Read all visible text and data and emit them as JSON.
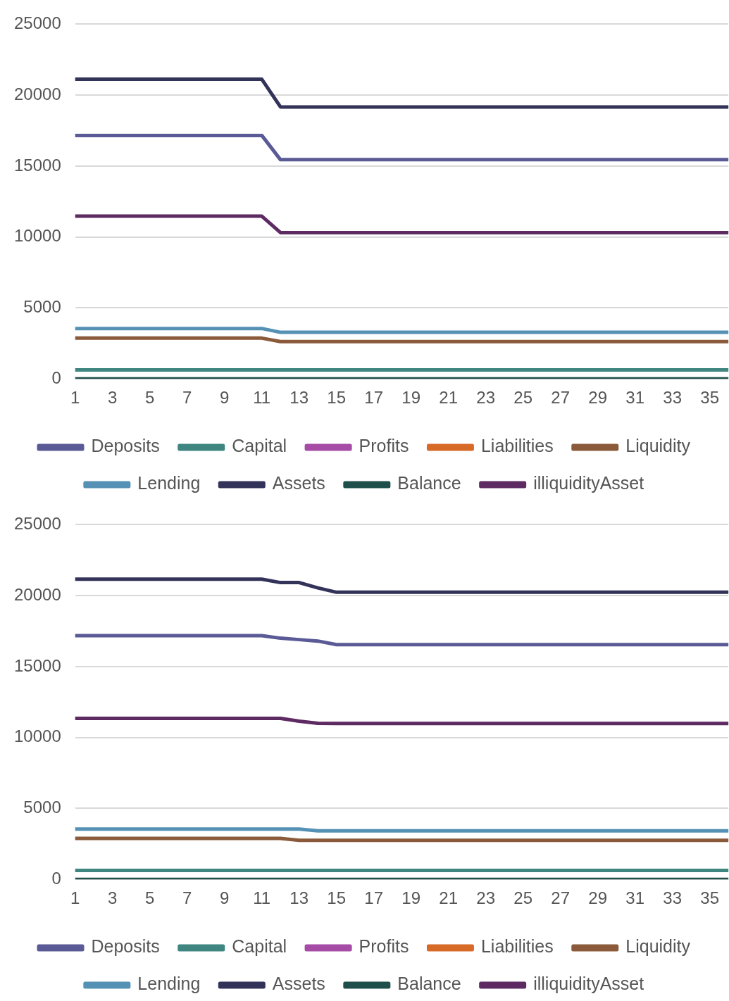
{
  "chart_data": [
    {
      "type": "line",
      "x": [
        1,
        2,
        3,
        4,
        5,
        6,
        7,
        8,
        9,
        10,
        11,
        12,
        13,
        14,
        15,
        16,
        17,
        18,
        19,
        20,
        21,
        22,
        23,
        24,
        25,
        26,
        27,
        28,
        29,
        30,
        31,
        32,
        33,
        34,
        35,
        36
      ],
      "xlim": [
        1,
        36
      ],
      "xticks": [
        1,
        3,
        5,
        7,
        9,
        11,
        13,
        15,
        17,
        19,
        21,
        23,
        25,
        27,
        29,
        31,
        33,
        35
      ],
      "ylim": [
        0,
        25000
      ],
      "yticks": [
        0,
        5000,
        10000,
        15000,
        20000,
        25000
      ],
      "grid": "y",
      "legend": "bottom",
      "marker": "none",
      "line_style": "solid",
      "series": [
        {
          "name": "Deposits",
          "color": "#5a5a96",
          "values": [
            17160,
            17160,
            17160,
            17160,
            17160,
            17160,
            17160,
            17160,
            17160,
            17160,
            17160,
            15450,
            15450,
            15450,
            15450,
            15450,
            15450,
            15450,
            15450,
            15450,
            15450,
            15450,
            15450,
            15450,
            15450,
            15450,
            15450,
            15450,
            15450,
            15450,
            15450,
            15450,
            15450,
            15450,
            15450,
            15450
          ]
        },
        {
          "name": "Capital",
          "color": "#3f8580",
          "values": [
            630,
            630,
            630,
            630,
            630,
            630,
            630,
            630,
            630,
            630,
            630,
            630,
            630,
            630,
            630,
            630,
            630,
            630,
            630,
            630,
            630,
            630,
            630,
            630,
            630,
            630,
            630,
            630,
            630,
            630,
            630,
            630,
            630,
            630,
            630,
            630
          ]
        },
        {
          "name": "Profits",
          "color": "#a64ca6",
          "values": [
            null,
            null,
            null,
            null,
            null,
            null,
            null,
            null,
            null,
            null,
            null,
            null,
            null,
            null,
            null,
            null,
            null,
            null,
            null,
            null,
            null,
            null,
            null,
            null,
            null,
            null,
            null,
            null,
            null,
            null,
            null,
            null,
            null,
            null,
            null,
            null
          ]
        },
        {
          "name": "Liabilities",
          "color": "#d86a28",
          "values": [
            null,
            null,
            null,
            null,
            null,
            null,
            null,
            null,
            null,
            null,
            null,
            null,
            null,
            null,
            null,
            null,
            null,
            null,
            null,
            null,
            null,
            null,
            null,
            null,
            null,
            null,
            null,
            null,
            null,
            null,
            null,
            null,
            null,
            null,
            null,
            null
          ]
        },
        {
          "name": "Liquidity",
          "color": "#8b5a3a",
          "values": [
            2870,
            2870,
            2870,
            2870,
            2870,
            2870,
            2870,
            2870,
            2870,
            2870,
            2870,
            2630,
            2630,
            2630,
            2630,
            2630,
            2630,
            2630,
            2630,
            2630,
            2630,
            2630,
            2630,
            2630,
            2630,
            2630,
            2630,
            2630,
            2630,
            2630,
            2630,
            2630,
            2630,
            2630,
            2630,
            2630
          ]
        },
        {
          "name": "Lending",
          "color": "#5591b5",
          "values": [
            3550,
            3550,
            3550,
            3550,
            3550,
            3550,
            3550,
            3550,
            3550,
            3550,
            3550,
            3280,
            3280,
            3280,
            3280,
            3280,
            3280,
            3280,
            3280,
            3280,
            3280,
            3280,
            3280,
            3280,
            3280,
            3280,
            3280,
            3280,
            3280,
            3280,
            3280,
            3280,
            3280,
            3280,
            3280,
            3280
          ]
        },
        {
          "name": "Assets",
          "color": "#33335a",
          "values": [
            21120,
            21120,
            21120,
            21120,
            21120,
            21120,
            21120,
            21120,
            21120,
            21120,
            21120,
            19170,
            19170,
            19170,
            19170,
            19170,
            19170,
            19170,
            19170,
            19170,
            19170,
            19170,
            19170,
            19170,
            19170,
            19170,
            19170,
            19170,
            19170,
            19170,
            19170,
            19170,
            19170,
            19170,
            19170,
            19170
          ]
        },
        {
          "name": "Balance",
          "color": "#1f4f4b",
          "values": [
            0,
            0,
            0,
            0,
            0,
            0,
            0,
            0,
            0,
            0,
            0,
            0,
            0,
            0,
            0,
            0,
            0,
            0,
            0,
            0,
            0,
            0,
            0,
            0,
            0,
            0,
            0,
            0,
            0,
            0,
            0,
            0,
            0,
            0,
            0,
            0
          ]
        },
        {
          "name": "illiquidityAsset",
          "color": "#5e2a62",
          "values": [
            11470,
            11470,
            11470,
            11470,
            11470,
            11470,
            11470,
            11470,
            11470,
            11470,
            11470,
            10310,
            10310,
            10310,
            10310,
            10310,
            10310,
            10310,
            10310,
            10310,
            10310,
            10310,
            10310,
            10310,
            10310,
            10310,
            10310,
            10310,
            10310,
            10310,
            10310,
            10310,
            10310,
            10310,
            10310,
            10310
          ]
        }
      ]
    },
    {
      "type": "line",
      "x": [
        1,
        2,
        3,
        4,
        5,
        6,
        7,
        8,
        9,
        10,
        11,
        12,
        13,
        14,
        15,
        16,
        17,
        18,
        19,
        20,
        21,
        22,
        23,
        24,
        25,
        26,
        27,
        28,
        29,
        30,
        31,
        32,
        33,
        34,
        35,
        36
      ],
      "xlim": [
        1,
        36
      ],
      "xticks": [
        1,
        3,
        5,
        7,
        9,
        11,
        13,
        15,
        17,
        19,
        21,
        23,
        25,
        27,
        29,
        31,
        33,
        35
      ],
      "ylim": [
        0,
        25000
      ],
      "yticks": [
        0,
        5000,
        10000,
        15000,
        20000,
        25000
      ],
      "grid": "y",
      "legend": "bottom",
      "marker": "none",
      "line_style": "solid",
      "series": [
        {
          "name": "Deposits",
          "color": "#5a5a96",
          "values": [
            17180,
            17180,
            17180,
            17180,
            17180,
            17180,
            17180,
            17180,
            17180,
            17180,
            17180,
            17000,
            16900,
            16800,
            16550,
            16550,
            16550,
            16550,
            16550,
            16550,
            16550,
            16550,
            16550,
            16550,
            16550,
            16550,
            16550,
            16550,
            16550,
            16550,
            16550,
            16550,
            16550,
            16550,
            16550,
            16550
          ]
        },
        {
          "name": "Capital",
          "color": "#3f8580",
          "values": [
            630,
            630,
            630,
            630,
            630,
            630,
            630,
            630,
            630,
            630,
            630,
            630,
            630,
            630,
            630,
            630,
            630,
            630,
            630,
            630,
            630,
            630,
            630,
            630,
            630,
            630,
            630,
            630,
            630,
            630,
            630,
            630,
            630,
            630,
            630,
            630
          ]
        },
        {
          "name": "Profits",
          "color": "#a64ca6",
          "values": [
            null,
            null,
            null,
            null,
            null,
            null,
            null,
            null,
            null,
            null,
            null,
            null,
            null,
            null,
            null,
            null,
            null,
            null,
            null,
            null,
            null,
            null,
            null,
            null,
            null,
            null,
            null,
            null,
            null,
            null,
            null,
            null,
            null,
            null,
            null,
            null
          ]
        },
        {
          "name": "Liabilities",
          "color": "#d86a28",
          "values": [
            null,
            null,
            null,
            null,
            null,
            null,
            null,
            null,
            null,
            null,
            null,
            null,
            null,
            null,
            null,
            null,
            null,
            null,
            null,
            null,
            null,
            null,
            null,
            null,
            null,
            null,
            null,
            null,
            null,
            null,
            null,
            null,
            null,
            null,
            null,
            null
          ]
        },
        {
          "name": "Liquidity",
          "color": "#8b5a3a",
          "values": [
            2890,
            2890,
            2890,
            2890,
            2890,
            2890,
            2890,
            2890,
            2890,
            2890,
            2890,
            2890,
            2750,
            2750,
            2750,
            2750,
            2750,
            2750,
            2750,
            2750,
            2750,
            2750,
            2750,
            2750,
            2750,
            2750,
            2750,
            2750,
            2750,
            2750,
            2750,
            2750,
            2750,
            2750,
            2750,
            2750
          ]
        },
        {
          "name": "Lending",
          "color": "#5591b5",
          "values": [
            3550,
            3550,
            3550,
            3550,
            3550,
            3550,
            3550,
            3550,
            3550,
            3550,
            3550,
            3550,
            3550,
            3420,
            3420,
            3420,
            3420,
            3420,
            3420,
            3420,
            3420,
            3420,
            3420,
            3420,
            3420,
            3420,
            3420,
            3420,
            3420,
            3420,
            3420,
            3420,
            3420,
            3420,
            3420,
            3420
          ]
        },
        {
          "name": "Assets",
          "color": "#33335a",
          "values": [
            21160,
            21160,
            21160,
            21160,
            21160,
            21160,
            21160,
            21160,
            21160,
            21160,
            21160,
            20920,
            20920,
            20550,
            20240,
            20240,
            20240,
            20240,
            20240,
            20240,
            20240,
            20240,
            20240,
            20240,
            20240,
            20240,
            20240,
            20240,
            20240,
            20240,
            20240,
            20240,
            20240,
            20240,
            20240,
            20240
          ]
        },
        {
          "name": "Balance",
          "color": "#1f4f4b",
          "values": [
            0,
            0,
            0,
            0,
            0,
            0,
            0,
            0,
            0,
            0,
            0,
            0,
            0,
            0,
            0,
            0,
            0,
            0,
            0,
            0,
            0,
            0,
            0,
            0,
            0,
            0,
            0,
            0,
            0,
            0,
            0,
            0,
            0,
            0,
            0,
            0
          ]
        },
        {
          "name": "illiquidityAsset",
          "color": "#5e2a62",
          "values": [
            11350,
            11350,
            11350,
            11350,
            11350,
            11350,
            11350,
            11350,
            11350,
            11350,
            11350,
            11350,
            11150,
            11000,
            10990,
            10990,
            10990,
            10990,
            10990,
            10990,
            10990,
            10990,
            10990,
            10990,
            10990,
            10990,
            10990,
            10990,
            10990,
            10990,
            10990,
            10990,
            10990,
            10990,
            10990,
            10990
          ]
        }
      ]
    }
  ]
}
